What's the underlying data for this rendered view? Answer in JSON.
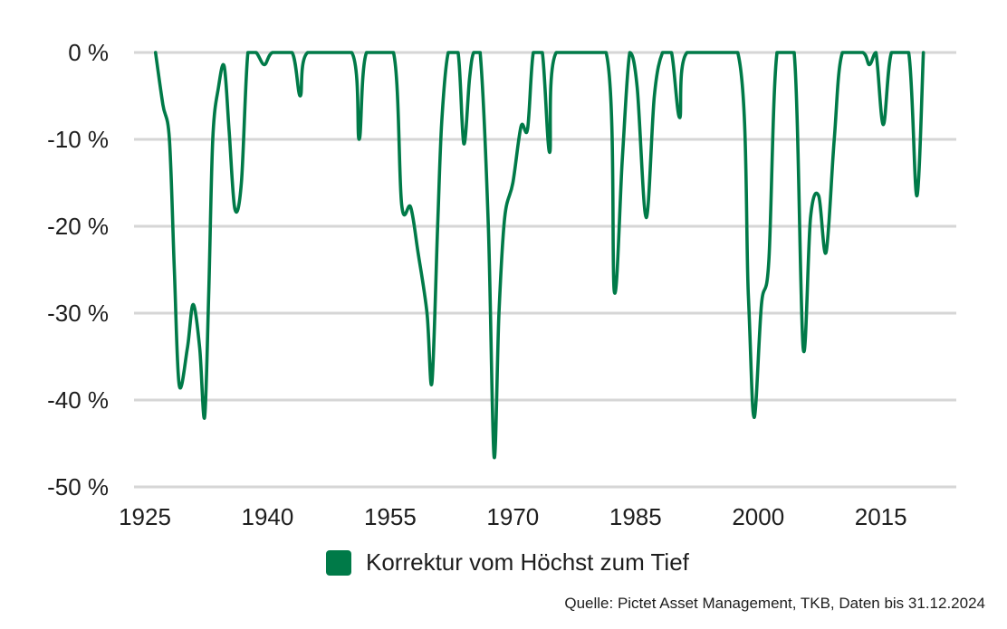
{
  "colors": {
    "series": "#007a48",
    "grid": "#d6d6d6",
    "text": "#1d1d1d"
  },
  "legend": {
    "label": "Korrektur vom Höchst zum Tief"
  },
  "source": "Quelle: Pictet Asset Management, TKB, Daten bis 31.12.2024",
  "chart_data": {
    "type": "line",
    "title": "",
    "xlabel": "",
    "ylabel": "",
    "xlim": [
      1923,
      2024
    ],
    "ylim": [
      -50,
      0
    ],
    "grid": true,
    "legend_position": "bottom",
    "x_ticks": [
      1925,
      1940,
      1955,
      1970,
      1985,
      2000,
      2015
    ],
    "x_tick_labels": [
      "1925",
      "1940",
      "1955",
      "1970",
      "1985",
      "2000",
      "2015"
    ],
    "y_ticks": [
      0,
      -10,
      -20,
      -30,
      -40,
      -50
    ],
    "y_tick_labels": [
      "0 %",
      "-10 %",
      "-20 %",
      "-30 %",
      "-40 %",
      "-50 %"
    ],
    "series": [
      {
        "name": "Korrektur vom Höchst zum Tief",
        "points": [
          [
            1926.3,
            0
          ],
          [
            1927.2,
            -6
          ],
          [
            1928.0,
            -10
          ],
          [
            1928.6,
            -25
          ],
          [
            1929.2,
            -38.3
          ],
          [
            1930.2,
            -34
          ],
          [
            1930.9,
            -29
          ],
          [
            1931.7,
            -34
          ],
          [
            1932.3,
            -42
          ],
          [
            1932.8,
            -28
          ],
          [
            1933.3,
            -10
          ],
          [
            1934.0,
            -4
          ],
          [
            1934.7,
            -1.6
          ],
          [
            1935.3,
            -9
          ],
          [
            1936.0,
            -18
          ],
          [
            1936.8,
            -15
          ],
          [
            1937.6,
            0
          ],
          [
            1938.6,
            0
          ],
          [
            1939.6,
            -1.4
          ],
          [
            1940.6,
            0
          ],
          [
            1943.0,
            0
          ],
          [
            1944.0,
            -5
          ],
          [
            1944.9,
            0
          ],
          [
            1950.3,
            0
          ],
          [
            1951.2,
            -10
          ],
          [
            1952.1,
            0
          ],
          [
            1955.4,
            0
          ],
          [
            1956.4,
            -17.5
          ],
          [
            1957.5,
            -17.8
          ],
          [
            1958.4,
            -23
          ],
          [
            1959.5,
            -30
          ],
          [
            1960.1,
            -38
          ],
          [
            1960.8,
            -20
          ],
          [
            1961.3,
            -8
          ],
          [
            1962.1,
            0
          ],
          [
            1963.3,
            0
          ],
          [
            1964.0,
            -10.5
          ],
          [
            1964.7,
            -3
          ],
          [
            1965.2,
            0
          ],
          [
            1966.0,
            0
          ],
          [
            1967.0,
            -20
          ],
          [
            1967.7,
            -46.5
          ],
          [
            1968.3,
            -30
          ],
          [
            1969.0,
            -19
          ],
          [
            1970.0,
            -15
          ],
          [
            1971.0,
            -8.5
          ],
          [
            1971.8,
            -8.8
          ],
          [
            1972.5,
            0
          ],
          [
            1973.6,
            0
          ],
          [
            1974.5,
            -11.5
          ],
          [
            1975.3,
            0
          ],
          [
            1981.4,
            0
          ],
          [
            1982.4,
            -27.5
          ],
          [
            1983.4,
            -12
          ],
          [
            1984.3,
            0
          ],
          [
            1985.2,
            -4
          ],
          [
            1986.3,
            -19
          ],
          [
            1987.3,
            -5
          ],
          [
            1988.3,
            0
          ],
          [
            1989.4,
            0
          ],
          [
            1990.4,
            -7.5
          ],
          [
            1991.3,
            0
          ],
          [
            1997.5,
            0
          ],
          [
            1998.8,
            -28
          ],
          [
            1999.5,
            -42
          ],
          [
            2000.4,
            -29
          ],
          [
            2001.3,
            -24
          ],
          [
            2002.3,
            0
          ],
          [
            2004.4,
            0
          ],
          [
            2005.5,
            -34
          ],
          [
            2006.4,
            -19
          ],
          [
            2007.4,
            -16.5
          ],
          [
            2008.3,
            -23
          ],
          [
            2009.3,
            -10
          ],
          [
            2010.3,
            0
          ],
          [
            2012.8,
            0
          ],
          [
            2013.6,
            -1.4
          ],
          [
            2014.4,
            0
          ],
          [
            2015.3,
            -8.3
          ],
          [
            2016.3,
            0
          ],
          [
            2018.4,
            0
          ],
          [
            2019.4,
            -16.5
          ],
          [
            2020.2,
            0
          ]
        ]
      }
    ]
  }
}
